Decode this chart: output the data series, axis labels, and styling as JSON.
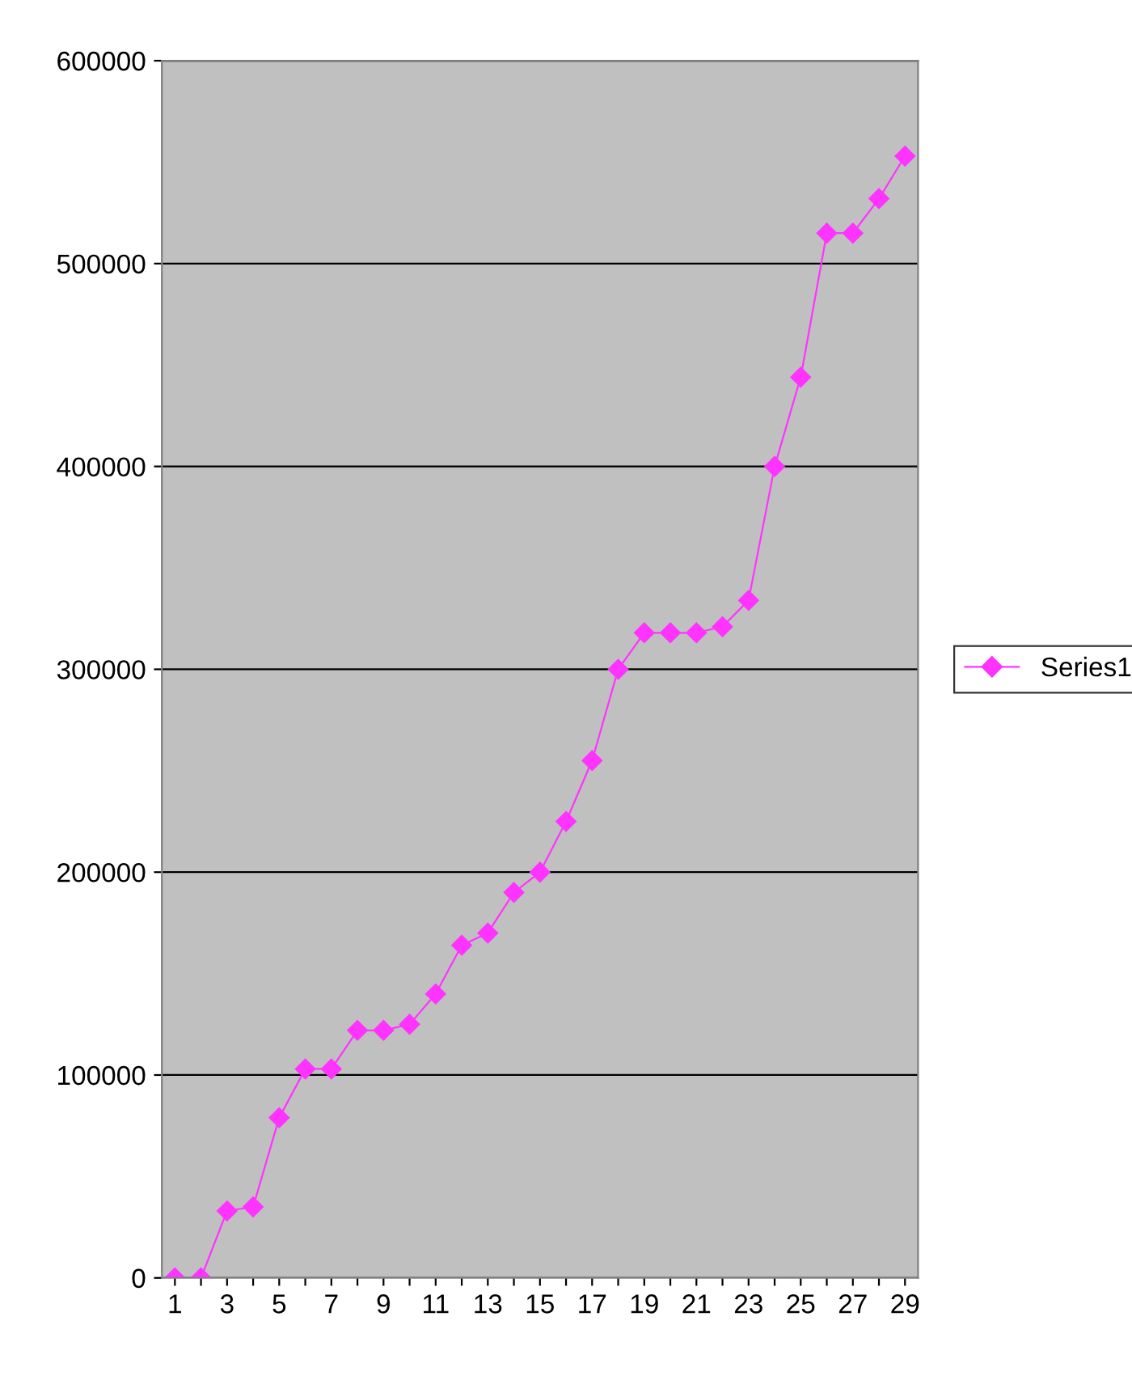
{
  "chart_data": {
    "type": "line",
    "categories": [
      "1",
      null,
      "3",
      null,
      "5",
      null,
      "7",
      null,
      "9",
      null,
      "11",
      null,
      "13",
      null,
      "15",
      null,
      "17",
      null,
      "19",
      null,
      "21",
      null,
      "23",
      null,
      "25",
      null,
      "27",
      null,
      "29"
    ],
    "series": [
      {
        "name": "Series1",
        "color": "#ff33ff",
        "values": [
          0,
          0,
          33000,
          35000,
          79000,
          103000,
          103000,
          122000,
          122000,
          125000,
          140000,
          164000,
          170000,
          190000,
          200000,
          225000,
          255000,
          300000,
          318000,
          318000,
          318000,
          321000,
          334000,
          400000,
          444000,
          515000,
          515000,
          532000,
          553000
        ]
      }
    ],
    "ylim": [
      0,
      600000
    ],
    "yticks": [
      0,
      100000,
      200000,
      300000,
      400000,
      500000,
      600000
    ],
    "grid": "y",
    "legend": "right",
    "marker": "diamond",
    "line_style": "solid"
  }
}
